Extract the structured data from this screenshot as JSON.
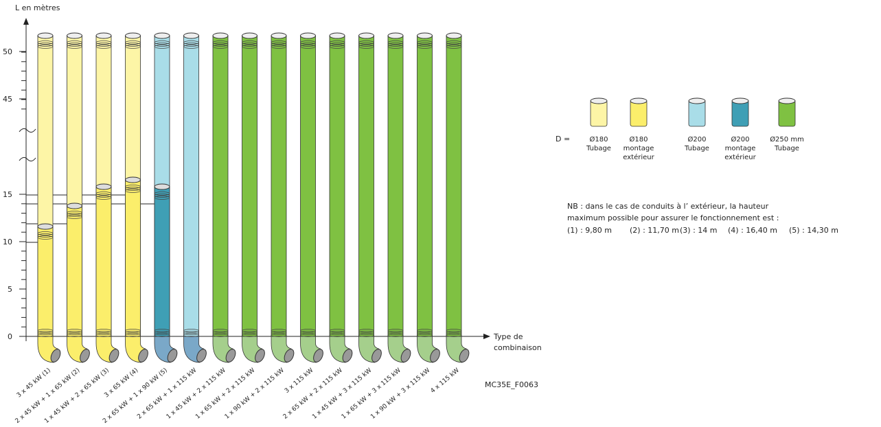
{
  "axis": {
    "y_label": "L en mètres",
    "x_label": [
      "Type de",
      "combinaison"
    ],
    "yticks": [
      0,
      5,
      10,
      15,
      45,
      50
    ]
  },
  "pipes": [
    "3 x 45 kW (1)",
    "2 x 45 kW + 1 x 65 kW (2)",
    "1 x 45 kW + 2 x 65 kW (3)",
    "3 x 65 kW (4)",
    "2 x 65 kW + 1 x 90 kW (5)",
    "2 x 65 kW + 1 x 115 kW",
    "1 x 45 kW + 2 x 115 kW",
    "1 x 65 kW + 2 x 115 kW",
    "1 x 90 kW + 2 x 115 kW",
    "3 x 115 kW",
    "2 x 65 kW + 2 x 115 kW",
    "1 x 45 kW + 3 x 115 kW",
    "1 x 65 kW + 3 x 115 kW",
    "1 x 90 kW + 3 x 115 kW",
    "4 x 115 kW"
  ],
  "legend": {
    "prefix": "D =",
    "items": [
      [
        "Ø180",
        "Tubage"
      ],
      [
        "Ø180",
        "montage",
        "extérieur"
      ],
      [
        "Ø200",
        "Tubage"
      ],
      [
        "Ø200",
        "montage",
        "extérieur"
      ],
      [
        "Ø250 mm",
        "Tubage"
      ]
    ]
  },
  "note": {
    "lines": [
      "NB : dans le cas de conduits à l’ extérieur, la hauteur",
      "maximum possible pour assurer le fonctionnement est :"
    ],
    "heights": [
      "(1) : 9,80 m",
      "(2) : 11,70 m",
      "(3) : 14 m",
      "(4) : 16,40 m",
      "(5) : 14,30 m"
    ]
  },
  "code": "MC35E_F0063"
}
